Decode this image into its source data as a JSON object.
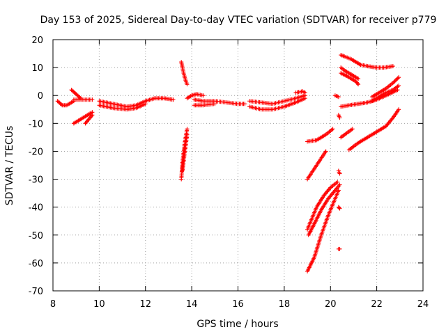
{
  "chart_data": {
    "type": "scatter",
    "title": "Day 153 of 2025, Sidereal Day-to-day VTEC variation (SDTVAR) for receiver p779",
    "xlabel": "GPS time / hours",
    "ylabel": "SDTVAR / TECUs",
    "xlim": [
      8,
      24
    ],
    "ylim": [
      -70,
      20
    ],
    "xticks": [
      8,
      10,
      12,
      14,
      16,
      18,
      20,
      22,
      24
    ],
    "yticks": [
      -70,
      -60,
      -50,
      -40,
      -30,
      -20,
      -10,
      0,
      10,
      20
    ],
    "grid": true,
    "marker": "+",
    "color": "#ff0000",
    "segments": [
      {
        "x": [
          8.2,
          8.4,
          8.6,
          8.9
        ],
        "y": [
          -2,
          -3.5,
          -3.5,
          -2
        ]
      },
      {
        "x": [
          8.8,
          9.0,
          9.2
        ],
        "y": [
          2,
          0.5,
          -1
        ]
      },
      {
        "x": [
          8.9,
          9.7
        ],
        "y": [
          -1.5,
          -1.5
        ]
      },
      {
        "x": [
          8.9,
          9.3,
          9.7
        ],
        "y": [
          -10,
          -8,
          -6
        ]
      },
      {
        "x": [
          9.4,
          9.7
        ],
        "y": [
          -10,
          -7
        ]
      },
      {
        "x": [
          10.0,
          10.6,
          11.2,
          11.6,
          12.0,
          12.4,
          12.8,
          13.2
        ],
        "y": [
          -2,
          -3,
          -4,
          -3.5,
          -2,
          -1,
          -1,
          -1.5
        ]
      },
      {
        "x": [
          10.0,
          10.6,
          11.2,
          11.6,
          12.0
        ],
        "y": [
          -3.5,
          -4.5,
          -5,
          -4.5,
          -3
        ]
      },
      {
        "x": [
          13.55,
          13.65,
          13.75,
          13.8
        ],
        "y": [
          12,
          8,
          5,
          4
        ]
      },
      {
        "x": [
          13.55,
          13.6,
          13.7,
          13.8
        ],
        "y": [
          -30,
          -24,
          -17,
          -12
        ]
      },
      {
        "x": [
          13.6,
          13.7,
          13.8
        ],
        "y": [
          -27,
          -20,
          -14
        ]
      },
      {
        "x": [
          13.8,
          14.0,
          14.2,
          14.5
        ],
        "y": [
          -1,
          0,
          0.5,
          0
        ]
      },
      {
        "x": [
          14.1,
          14.5,
          15.0,
          15.5,
          16.0,
          16.3
        ],
        "y": [
          -1.5,
          -2,
          -2,
          -2.5,
          -3,
          -3
        ]
      },
      {
        "x": [
          14.1,
          14.5,
          15.0
        ],
        "y": [
          -3.5,
          -3.5,
          -3
        ]
      },
      {
        "x": [
          16.5,
          17.0,
          17.5,
          18.0,
          18.5,
          18.9
        ],
        "y": [
          -2,
          -2.5,
          -3,
          -2,
          -1,
          0
        ]
      },
      {
        "x": [
          16.5,
          17.0,
          17.5,
          18.0,
          18.5,
          18.9
        ],
        "y": [
          -4,
          -5,
          -5,
          -4,
          -2.5,
          -1
        ]
      },
      {
        "x": [
          18.5,
          18.8,
          18.9
        ],
        "y": [
          1,
          1.5,
          1
        ]
      },
      {
        "x": [
          19.0,
          19.4,
          19.8,
          20.1
        ],
        "y": [
          -16.5,
          -16,
          -14,
          -12
        ]
      },
      {
        "x": [
          19.0,
          19.4,
          19.8
        ],
        "y": [
          -30,
          -25,
          -20
        ]
      },
      {
        "x": [
          19.0,
          19.2,
          19.4,
          19.7,
          20.0,
          20.3
        ],
        "y": [
          -48,
          -44,
          -40,
          -36,
          -33,
          -31
        ]
      },
      {
        "x": [
          19.05,
          19.3,
          19.6,
          19.9,
          20.2,
          20.4
        ],
        "y": [
          -50,
          -46,
          -41,
          -37,
          -34,
          -32
        ]
      },
      {
        "x": [
          19.0,
          19.3,
          19.6,
          19.9,
          20.2,
          20.35
        ],
        "y": [
          -63,
          -58,
          -50,
          -43,
          -37,
          -34
        ]
      },
      {
        "x": [
          20.2,
          20.35
        ],
        "y": [
          0,
          -0.5
        ]
      },
      {
        "x": [
          20.35,
          20.4
        ],
        "y": [
          -7,
          -8
        ]
      },
      {
        "x": [
          20.35,
          20.4
        ],
        "y": [
          -27,
          -28
        ]
      },
      {
        "x": [
          20.35,
          20.4
        ],
        "y": [
          -40,
          -40.5
        ]
      },
      {
        "x": [
          20.35,
          20.4
        ],
        "y": [
          -55,
          -55
        ]
      },
      {
        "x": [
          20.45,
          20.7,
          20.95
        ],
        "y": [
          -15,
          -13.5,
          -12
        ]
      },
      {
        "x": [
          20.45,
          20.6,
          20.9,
          21.1,
          21.3
        ],
        "y": [
          14.5,
          14,
          13,
          12,
          11
        ]
      },
      {
        "x": [
          21.3,
          21.6,
          22.0,
          22.3,
          22.7
        ],
        "y": [
          11,
          10.5,
          10,
          10,
          10.5
        ]
      },
      {
        "x": [
          20.45,
          20.6,
          20.8,
          21.0,
          21.2
        ],
        "y": [
          10,
          9,
          8,
          7,
          6
        ]
      },
      {
        "x": [
          20.45,
          20.7,
          20.9,
          21.1,
          21.2
        ],
        "y": [
          8,
          7,
          6,
          5,
          4
        ]
      },
      {
        "x": [
          20.45,
          20.8,
          21.2,
          21.6,
          22.0,
          22.4,
          22.9
        ],
        "y": [
          -4,
          -3.5,
          -3,
          -2.5,
          -1.5,
          0,
          2
        ]
      },
      {
        "x": [
          21.8,
          22.1,
          22.4,
          22.7,
          22.95
        ],
        "y": [
          -0.5,
          1,
          2.5,
          4.5,
          6.5
        ]
      },
      {
        "x": [
          21.8,
          22.1,
          22.4,
          22.7,
          22.95
        ],
        "y": [
          -2,
          -0.5,
          1,
          2,
          3.5
        ]
      },
      {
        "x": [
          20.8,
          21.2,
          21.6,
          22.0,
          22.4,
          22.7,
          22.95
        ],
        "y": [
          -19.5,
          -17,
          -15,
          -13,
          -11,
          -8,
          -5
        ]
      }
    ]
  }
}
